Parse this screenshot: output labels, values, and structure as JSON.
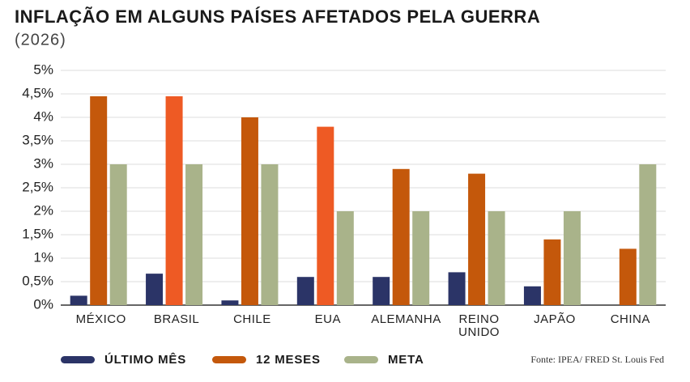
{
  "chart_data": {
    "type": "bar",
    "title": "INFLAÇÃO EM ALGUNS PAÍSES AFETADOS PELA GUERRA",
    "subtitle": "(2026)",
    "source": "Fonte: IPEA/ FRED St. Louis Fed",
    "categories": [
      "MÉXICO",
      "BRASIL",
      "CHILE",
      "EUA",
      "ALEMANHA",
      "REINO UNIDO",
      "JAPÃO",
      "CHINA"
    ],
    "series": [
      {
        "name": "ÚLTIMO MÊS",
        "color": "#2b3467",
        "values": [
          0.2,
          0.67,
          0.1,
          0.6,
          0.6,
          0.7,
          0.4,
          0
        ]
      },
      {
        "name": "12 MESES",
        "color": "#c4580b",
        "bar_colors": [
          "#c4580b",
          "#ee5a24",
          "#c4580b",
          "#ee5a24",
          "#c4580b",
          "#c4580b",
          "#c4580b",
          "#c4580b"
        ],
        "values": [
          4.45,
          4.45,
          4.0,
          3.8,
          2.9,
          2.8,
          1.4,
          1.2
        ]
      },
      {
        "name": "META",
        "color": "#a9b38a",
        "values": [
          3,
          3,
          3,
          2,
          2,
          2,
          2,
          3
        ]
      }
    ],
    "ylim": [
      0,
      5
    ],
    "yticks": [
      {
        "value": 0,
        "label": "0%"
      },
      {
        "value": 0.5,
        "label": "0,5%"
      },
      {
        "value": 1,
        "label": "1%"
      },
      {
        "value": 1.5,
        "label": "1,5%"
      },
      {
        "value": 2,
        "label": "2%"
      },
      {
        "value": 2.5,
        "label": "2,5%"
      },
      {
        "value": 3,
        "label": "3%"
      },
      {
        "value": 3.5,
        "label": "3,5%"
      },
      {
        "value": 4,
        "label": "4%"
      },
      {
        "value": 4.5,
        "label": "4,5%"
      },
      {
        "value": 5,
        "label": "5%"
      }
    ],
    "grid": true
  }
}
